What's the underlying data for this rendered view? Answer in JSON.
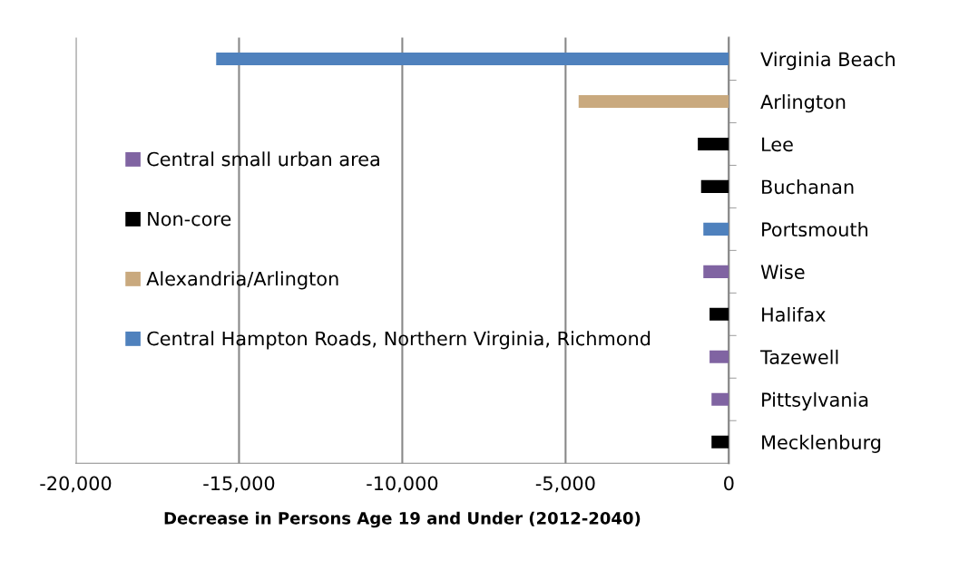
{
  "chart_data": {
    "type": "bar",
    "orientation": "horizontal",
    "xlabel": "Decrease in Persons Age 19 and Under (2012-2040)",
    "categories": [
      "Virginia Beach",
      "Arlington",
      "Lee",
      "Buchanan",
      "Portsmouth",
      "Wise",
      "Halifax",
      "Tazewell",
      "Pittsylvania",
      "Mecklenburg"
    ],
    "series": [
      {
        "name": "Central small urban area",
        "color": "#8064a2",
        "values": [
          null,
          null,
          null,
          null,
          null,
          -780,
          null,
          -590,
          -530,
          null
        ]
      },
      {
        "name": "Non-core",
        "color": "#000000",
        "values": [
          null,
          null,
          -950,
          -850,
          null,
          null,
          -590,
          null,
          null,
          -530
        ]
      },
      {
        "name": "Alexandria/Arlington",
        "color": "#c9a97e",
        "values": [
          null,
          -4600,
          null,
          null,
          null,
          null,
          null,
          null,
          null,
          null
        ]
      },
      {
        "name": "Central Hampton Roads, Northern Virginia, Richmond",
        "color": "#4f81bd",
        "values": [
          -15700,
          null,
          null,
          null,
          -780,
          null,
          null,
          null,
          null,
          null
        ]
      }
    ],
    "xlim": [
      -20000,
      0
    ],
    "xticks": [
      {
        "value": -20000,
        "label": "-20,000"
      },
      {
        "value": -15000,
        "label": "-15,000"
      },
      {
        "value": -10000,
        "label": "-10,000"
      },
      {
        "value": -5000,
        "label": "-5,000"
      },
      0
    ],
    "grid": "x",
    "legend": "left"
  }
}
